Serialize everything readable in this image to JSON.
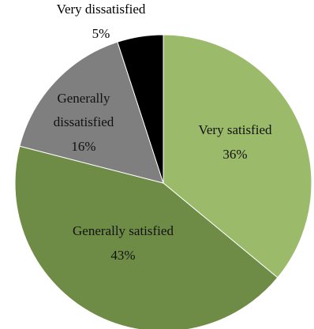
{
  "chart_data": {
    "type": "pie",
    "slices": [
      {
        "name": "Very satisfied",
        "value": 36,
        "value_label": "36%",
        "color": "#9bbb6a"
      },
      {
        "name": "Generally satisfied",
        "value": 43,
        "value_label": "43%",
        "color": "#6e8c45"
      },
      {
        "name": "Generally dissatisfied",
        "name_lines": [
          "Generally",
          "dissatisfied"
        ],
        "value": 16,
        "value_label": "16%",
        "color": "#7f7f7f"
      },
      {
        "name": "Very dissatisfied",
        "value": 5,
        "value_label": "5%",
        "color": "#000000"
      }
    ],
    "start": "top",
    "direction": "clockwise",
    "legend": "none"
  }
}
